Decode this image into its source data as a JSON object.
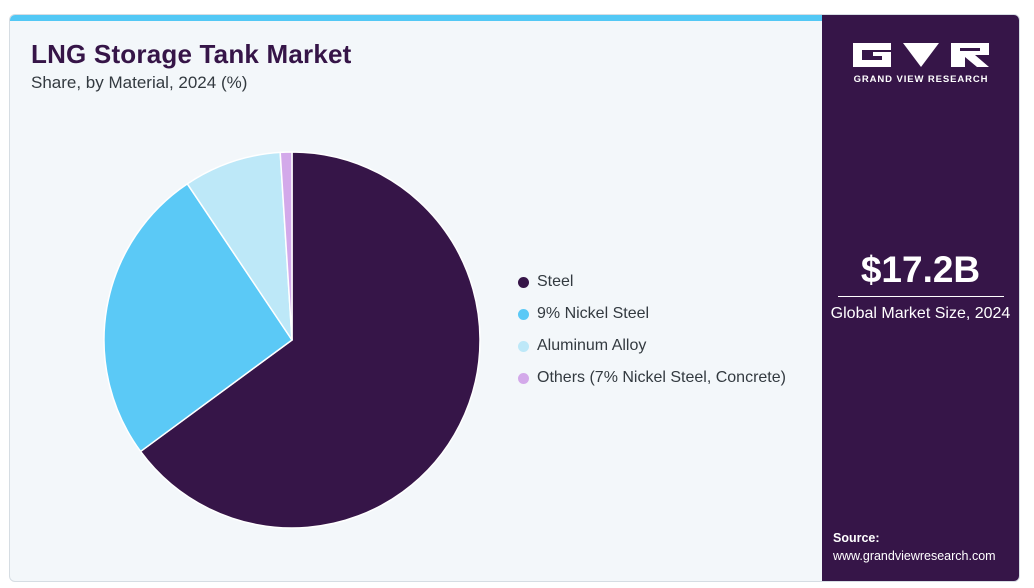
{
  "header": {
    "title": "LNG Storage Tank Market",
    "subtitle": "Share, by Material, 2024 (%)"
  },
  "chart_data": {
    "type": "pie",
    "title": "LNG Storage Tank Market",
    "subtitle": "Share, by Material, 2024 (%)",
    "categories": [
      "Steel",
      "9% Nickel Steel",
      "Aluminum Alloy",
      "Others (7% Nickel Steel, Concrete)"
    ],
    "values": [
      64.9,
      25.7,
      8.4,
      1.0
    ],
    "colors": [
      "#361548",
      "#5bc9f6",
      "#bde8f8",
      "#d3a9ea"
    ],
    "legend_position": "right",
    "start_angle": "12 o'clock, clockwise"
  },
  "legend": [
    {
      "label": "Steel",
      "color": "#361548"
    },
    {
      "label": "9% Nickel Steel",
      "color": "#5bc9f6"
    },
    {
      "label": "Aluminum Alloy",
      "color": "#bde8f8"
    },
    {
      "label": "Others (7% Nickel Steel, Concrete)",
      "color": "#d3a9ea"
    }
  ],
  "sidebar": {
    "logo_text": "GRAND VIEW RESEARCH",
    "market_value": "$17.2B",
    "market_label": "Global Market Size, 2024",
    "source_label": "Source:",
    "source_url": "www.grandviewresearch.com"
  },
  "colors": {
    "accent_strip": "#52c8f5",
    "sidebar_bg": "#361548",
    "panel_bg": "#f3f7fa"
  }
}
